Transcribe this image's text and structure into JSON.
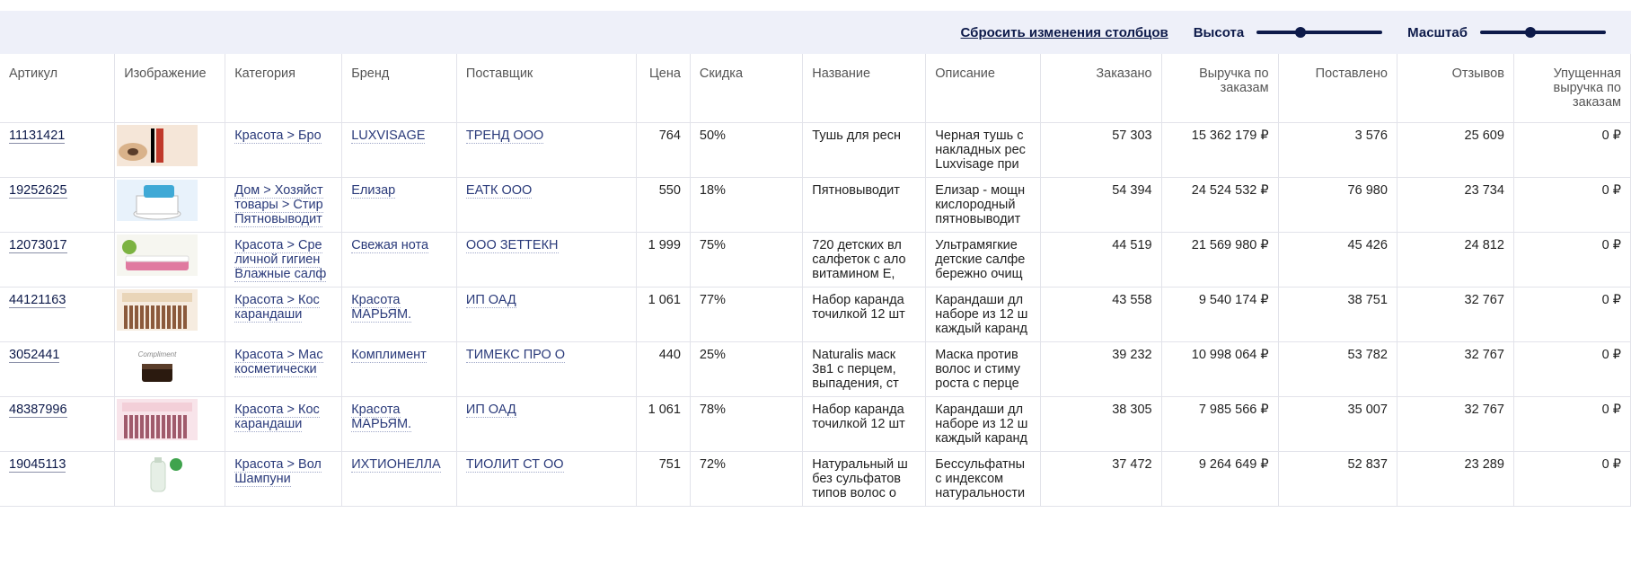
{
  "toolbar": {
    "reset_label": "Сбросить изменения столбцов",
    "height_label": "Высота",
    "scale_label": "Масштаб",
    "height_slider_pct": 35,
    "scale_slider_pct": 40
  },
  "columns": [
    {
      "key": "sku",
      "label": "Артикул"
    },
    {
      "key": "img",
      "label": "Изображение"
    },
    {
      "key": "cat",
      "label": "Категория"
    },
    {
      "key": "brand",
      "label": "Бренд"
    },
    {
      "key": "supplier",
      "label": "Поставщик"
    },
    {
      "key": "price",
      "label": "Цена",
      "align": "right"
    },
    {
      "key": "discount",
      "label": "Скидка"
    },
    {
      "key": "name",
      "label": "Название"
    },
    {
      "key": "desc",
      "label": "Описание"
    },
    {
      "key": "ordered",
      "label": "Заказано",
      "align": "right"
    },
    {
      "key": "revenue",
      "label": "Выручка по заказам",
      "align": "right"
    },
    {
      "key": "delivered",
      "label": "Поставлено",
      "align": "right"
    },
    {
      "key": "reviews",
      "label": "Отзывов",
      "align": "right"
    },
    {
      "key": "lost",
      "label": "Упущенная выручка по заказам",
      "align": "right"
    }
  ],
  "rows": [
    {
      "sku": "11131421",
      "thumb": "mascara",
      "cat": "Красота > Бро",
      "brand": "LUXVISAGE",
      "supplier": "ТРЕНД ООО",
      "price": "764",
      "discount": "50%",
      "name": "Тушь для ресн",
      "desc": "Черная тушь с накладных рес Luxvisage при",
      "ordered": "57 303",
      "revenue": "15 362 179 ₽",
      "delivered": "3 576",
      "reviews": "25 609",
      "lost": "0 ₽"
    },
    {
      "sku": "19252625",
      "thumb": "jar-blue",
      "cat": "Дом > Хозяйст товары > Стир Пятновыводит",
      "brand": "Елизар",
      "supplier": "ЕАТК ООО",
      "price": "550",
      "discount": "18%",
      "name": "Пятновыводит",
      "desc": "Елизар - мощн кислородный пятновыводит",
      "ordered": "54 394",
      "revenue": "24 524 532 ₽",
      "delivered": "76 980",
      "reviews": "23 734",
      "lost": "0 ₽"
    },
    {
      "sku": "12073017",
      "thumb": "wipes",
      "cat": "Красота > Сре личной гигиен Влажные салф",
      "brand": "Свежая нота",
      "supplier": "ООО ЗЕТТЕКН",
      "price": "1 999",
      "discount": "75%",
      "name": "720 детских вл салфеток с ало витамином Е,",
      "desc": "Ультрамягкие детские салфе бережно очищ",
      "ordered": "44 519",
      "revenue": "21 569 980 ₽",
      "delivered": "45 426",
      "reviews": "24 812",
      "lost": "0 ₽"
    },
    {
      "sku": "44121163",
      "thumb": "pencils",
      "cat": "Красота > Кос карандаши",
      "brand": "Красота МАРЬЯМ.",
      "supplier": "ИП ОАД",
      "price": "1 061",
      "discount": "77%",
      "name": "Набор каранда точилкой 12 шт",
      "desc": "Карандаши дл наборе из 12 ш каждый каранд",
      "ordered": "43 558",
      "revenue": "9 540 174 ₽",
      "delivered": "38 751",
      "reviews": "32 767",
      "lost": "0 ₽"
    },
    {
      "sku": "3052441",
      "thumb": "mask-jar",
      "cat": "Красота > Мас косметически",
      "brand": "Комплимент",
      "supplier": "ТИМЕКС ПРО О",
      "price": "440",
      "discount": "25%",
      "name": "Naturalis маск 3в1 с перцем, выпадения, ст",
      "desc": "Маска против волос и стиму роста с перце",
      "ordered": "39 232",
      "revenue": "10 998 064 ₽",
      "delivered": "53 782",
      "reviews": "32 767",
      "lost": "0 ₽"
    },
    {
      "sku": "48387996",
      "thumb": "pencils-pink",
      "cat": "Красота > Кос карандаши",
      "brand": "Красота МАРЬЯМ.",
      "supplier": "ИП ОАД",
      "price": "1 061",
      "discount": "78%",
      "name": "Набор каранда точилкой 12 шт",
      "desc": "Карандаши дл наборе из 12 ш каждый каранд",
      "ordered": "38 305",
      "revenue": "7 985 566 ₽",
      "delivered": "35 007",
      "reviews": "32 767",
      "lost": "0 ₽"
    },
    {
      "sku": "19045113",
      "thumb": "shampoo",
      "cat": "Красота > Вол Шампуни",
      "brand": "ИХТИОНЕЛЛА",
      "supplier": "ТИОЛИТ СТ ОО",
      "price": "751",
      "discount": "72%",
      "name": "Натуральный ш без сульфатов типов волос о",
      "desc": "Бессульфатны с индексом натуральности",
      "ordered": "37 472",
      "revenue": "9 264 649 ₽",
      "delivered": "52 837",
      "reviews": "23 289",
      "lost": "0 ₽"
    }
  ],
  "thumb_svgs": {
    "mascara": "<svg viewBox='0 0 90 46'><rect width='90' height='46' fill='#f5e6d8'/><rect x='38' y='4' width='4' height='38' fill='#000'/><rect x='44' y='4' width='8' height='38' fill='#c0392b'/><ellipse cx='18' cy='30' rx='16' ry='10' fill='#d9b28a'/><ellipse cx='18' cy='30' rx='6' ry='4' fill='#5a3d2a'/></svg>",
    "jar-blue": "<svg viewBox='0 0 90 46'><rect width='90' height='46' fill='#e8f2fb'/><ellipse cx='45' cy='38' rx='26' ry='6' fill='#fff' stroke='#bbb'/><rect x='22' y='18' width='46' height='20' fill='#fff' stroke='#bbb'/><rect x='30' y='6' width='34' height='14' rx='3' fill='#3fa9d6'/></svg>",
    "wipes": "<svg viewBox='0 0 90 46'><rect width='90' height='46' fill='#f6f6f0'/><circle cx='14' cy='14' r='8' fill='#7cb342'/><rect x='10' y='28' width='70' height='12' rx='3' fill='#e07aa0'/><rect x='10' y='24' width='70' height='6' rx='2' fill='#fff' stroke='#ddd'/></svg>",
    "pencils": "<svg viewBox='0 0 90 46'><rect width='90' height='46' fill='#f6ece0'/><rect x='6' y='4' width='78' height='10' fill='#e9d5b8'/><g fill='#8b5a3c'><rect x='8' y='18' width='4' height='26'/><rect x='14' y='18' width='4' height='26'/><rect x='20' y='18' width='4' height='26'/><rect x='26' y='18' width='4' height='26'/><rect x='32' y='18' width='4' height='26'/><rect x='38' y='18' width='4' height='26'/><rect x='44' y='18' width='4' height='26'/><rect x='50' y='18' width='4' height='26'/><rect x='56' y='18' width='4' height='26'/><rect x='62' y='18' width='4' height='26'/><rect x='68' y='18' width='4' height='26'/><rect x='74' y='18' width='4' height='26'/></g></svg>",
    "mask-jar": "<svg viewBox='0 0 90 46'><rect width='90' height='46' fill='#fff'/><text x='45' y='14' text-anchor='middle' font-size='8' fill='#888' font-style='italic'>Compliment</text><rect x='28' y='22' width='34' height='20' rx='3' fill='#2b1a0f'/><rect x='28' y='22' width='34' height='6' fill='#5a3d2a'/></svg>",
    "pencils-pink": "<svg viewBox='0 0 90 46'><rect width='90' height='46' fill='#f8e4ea'/><rect x='6' y='4' width='78' height='10' fill='#f3cfd8'/><g fill='#a05a6c'><rect x='8' y='18' width='4' height='26'/><rect x='14' y='18' width='4' height='26'/><rect x='20' y='18' width='4' height='26'/><rect x='26' y='18' width='4' height='26'/><rect x='32' y='18' width='4' height='26'/><rect x='38' y='18' width='4' height='26'/><rect x='44' y='18' width='4' height='26'/><rect x='50' y='18' width='4' height='26'/><rect x='56' y='18' width='4' height='26'/><rect x='62' y='18' width='4' height='26'/><rect x='68' y='18' width='4' height='26'/><rect x='74' y='18' width='4' height='26'/></g></svg>",
    "shampoo": "<svg viewBox='0 0 90 46'><rect width='90' height='46' fill='#fff'/><rect x='38' y='8' width='16' height='34' rx='5' fill='#e6efe6' stroke='#c8d8c8'/><rect x='42' y='4' width='8' height='6' fill='#c8d8c8'/><circle cx='66' cy='12' r='7' fill='#3fa34d'/></svg>"
  }
}
